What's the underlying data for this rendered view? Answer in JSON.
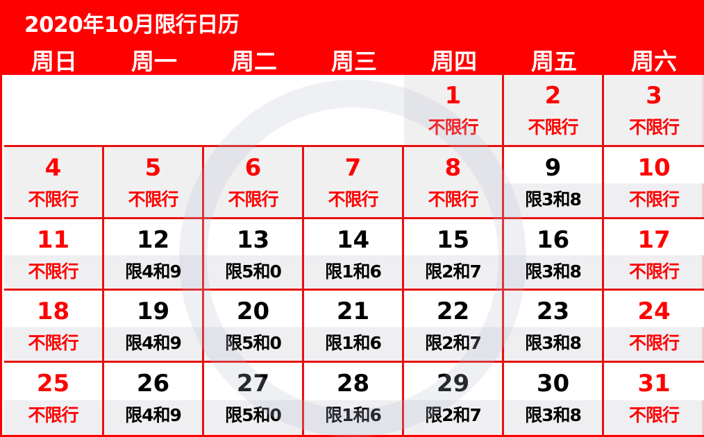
{
  "title": "2020年10月限行日历",
  "weekdays": [
    "周日",
    "周一",
    "周二",
    "周三",
    "周四",
    "周五",
    "周六"
  ],
  "colors": {
    "accent": "#ff0000",
    "no_restriction_text": "#ff0000",
    "restriction_text": "#000000"
  },
  "leading_empty_cells": 4,
  "days": [
    {
      "day": "1",
      "label": "不限行",
      "type": "free",
      "holiday": true
    },
    {
      "day": "2",
      "label": "不限行",
      "type": "free",
      "holiday": true
    },
    {
      "day": "3",
      "label": "不限行",
      "type": "free",
      "holiday": true
    },
    {
      "day": "4",
      "label": "不限行",
      "type": "free",
      "holiday": true
    },
    {
      "day": "5",
      "label": "不限行",
      "type": "free",
      "holiday": true
    },
    {
      "day": "6",
      "label": "不限行",
      "type": "free",
      "holiday": true
    },
    {
      "day": "7",
      "label": "不限行",
      "type": "free",
      "holiday": true
    },
    {
      "day": "8",
      "label": "不限行",
      "type": "free",
      "holiday": true
    },
    {
      "day": "9",
      "label": "限3和8",
      "type": "restricted"
    },
    {
      "day": "10",
      "label": "不限行",
      "type": "free"
    },
    {
      "day": "11",
      "label": "不限行",
      "type": "free"
    },
    {
      "day": "12",
      "label": "限4和9",
      "type": "restricted"
    },
    {
      "day": "13",
      "label": "限5和0",
      "type": "restricted"
    },
    {
      "day": "14",
      "label": "限1和6",
      "type": "restricted"
    },
    {
      "day": "15",
      "label": "限2和7",
      "type": "restricted"
    },
    {
      "day": "16",
      "label": "限3和8",
      "type": "restricted"
    },
    {
      "day": "17",
      "label": "不限行",
      "type": "free"
    },
    {
      "day": "18",
      "label": "不限行",
      "type": "free"
    },
    {
      "day": "19",
      "label": "限4和9",
      "type": "restricted"
    },
    {
      "day": "20",
      "label": "限5和0",
      "type": "restricted"
    },
    {
      "day": "21",
      "label": "限1和6",
      "type": "restricted"
    },
    {
      "day": "22",
      "label": "限2和7",
      "type": "restricted"
    },
    {
      "day": "23",
      "label": "限3和8",
      "type": "restricted"
    },
    {
      "day": "24",
      "label": "不限行",
      "type": "free"
    },
    {
      "day": "25",
      "label": "不限行",
      "type": "free"
    },
    {
      "day": "26",
      "label": "限4和9",
      "type": "restricted"
    },
    {
      "day": "27",
      "label": "限5和0",
      "type": "restricted"
    },
    {
      "day": "28",
      "label": "限1和6",
      "type": "restricted"
    },
    {
      "day": "29",
      "label": "限2和7",
      "type": "restricted"
    },
    {
      "day": "30",
      "label": "限3和8",
      "type": "restricted"
    },
    {
      "day": "31",
      "label": "不限行",
      "type": "free"
    }
  ]
}
